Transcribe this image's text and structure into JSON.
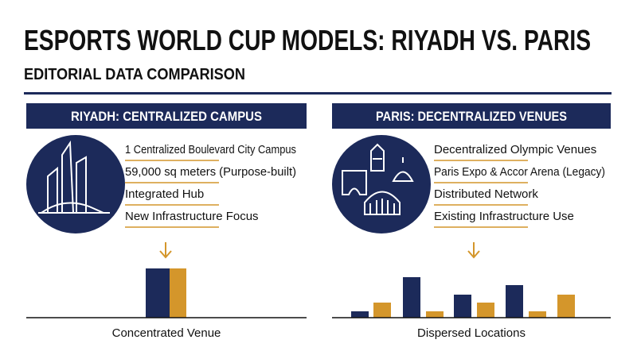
{
  "header": {
    "title": "ESPORTS WORLD CUP MODELS: RIYADH VS. PARIS",
    "subtitle": "EDITORIAL DATA COMPARISON"
  },
  "panels": [
    {
      "heading": "RIYADH: CENTRALIZED CAMPUS",
      "items": [
        "1 Centralized Boulevard City Campus",
        "59,000 sq meters (Purpose-built)",
        "Integrated Hub",
        "New Infrastructure Focus"
      ],
      "caption": "Concentrated Venue"
    },
    {
      "heading": "PARIS: DECENTRALIZED VENUES",
      "items": [
        "Decentralized Olympic Venues",
        "Paris Expo & Accor Arena (Legacy)",
        "Distributed Network",
        "Existing Infrastructure Use"
      ],
      "caption": "Dispersed Locations"
    }
  ]
}
